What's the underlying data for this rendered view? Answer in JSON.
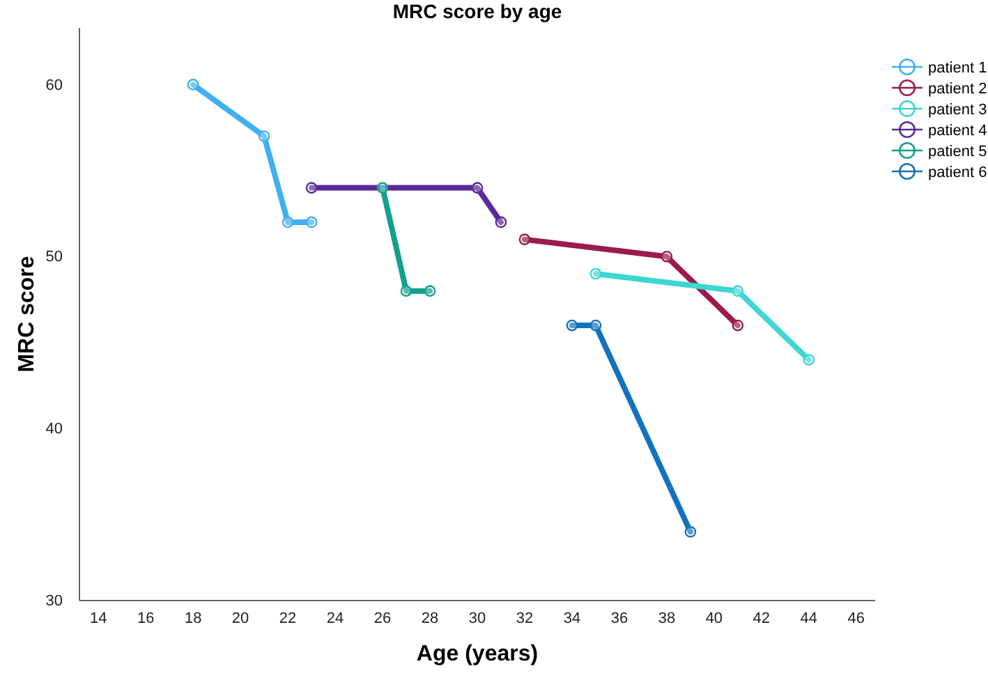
{
  "chart_data": {
    "type": "line",
    "title": "MRC score by age",
    "xlabel": "Age (years)",
    "ylabel": "MRC score",
    "xlim": [
      13.2,
      46.8
    ],
    "xticks": [
      14,
      16,
      18,
      20,
      22,
      24,
      26,
      28,
      30,
      32,
      34,
      36,
      38,
      40,
      42,
      44,
      46
    ],
    "ylim": [
      30,
      63.3
    ],
    "yticks": [
      30,
      40,
      50,
      60
    ],
    "marker": "circle",
    "legend": "top right",
    "grid": false,
    "series": [
      {
        "name": "patient 1",
        "color": "#3fb0f0",
        "x": [
          18,
          21,
          22,
          23
        ],
        "values": [
          60,
          57,
          52,
          52
        ]
      },
      {
        "name": "patient 2",
        "color": "#9b1b4e",
        "x": [
          32,
          38,
          41
        ],
        "values": [
          51,
          50,
          46
        ]
      },
      {
        "name": "patient 3",
        "color": "#3dd6d0",
        "x": [
          35,
          41,
          44
        ],
        "values": [
          49,
          48,
          44
        ]
      },
      {
        "name": "patient 4",
        "color": "#5a2a9a",
        "x": [
          23,
          30,
          31
        ],
        "values": [
          54,
          54,
          52
        ]
      },
      {
        "name": "patient 5",
        "color": "#13a08f",
        "x": [
          26,
          27,
          28
        ],
        "values": [
          54,
          48,
          48
        ]
      },
      {
        "name": "patient 6",
        "color": "#1471be",
        "x": [
          34,
          35,
          39
        ],
        "values": [
          46,
          46,
          34
        ]
      }
    ]
  }
}
